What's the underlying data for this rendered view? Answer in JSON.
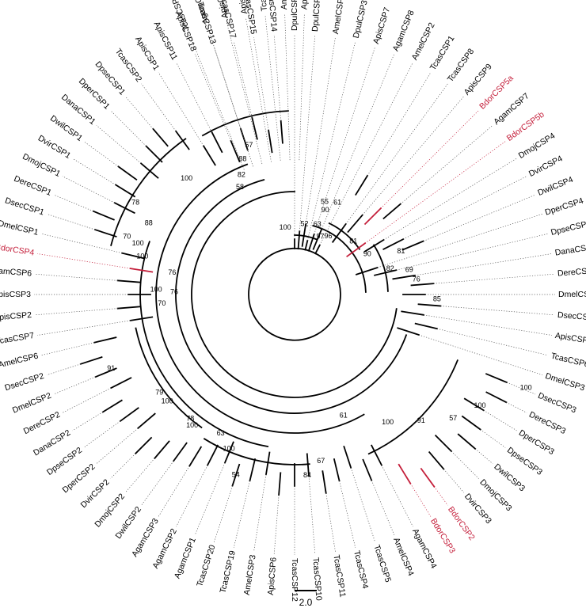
{
  "colors": {
    "branch": "#000000",
    "highlight": "#c41e3a",
    "guide": "#555555"
  },
  "scale_bar": {
    "label": "2.0"
  },
  "leaves": [
    {
      "t": "DpulCSP1",
      "a": 270,
      "h": false
    },
    {
      "t": "DpulCSP2",
      "a": 274.5,
      "h": false
    },
    {
      "t": "AmelCSP5",
      "a": 279,
      "h": false
    },
    {
      "t": "DpulCSP3",
      "a": 283.5,
      "h": false
    },
    {
      "t": "ApisCSP7",
      "a": 288,
      "h": false
    },
    {
      "t": "AgamCSP8",
      "a": 292.5,
      "h": false
    },
    {
      "t": "AmelCSP2",
      "a": 297,
      "h": false
    },
    {
      "t": "TcasCSP1",
      "a": 301.5,
      "h": false
    },
    {
      "t": "TcasCSP8",
      "a": 306,
      "h": false
    },
    {
      "t": "ApisCSP9",
      "a": 310.5,
      "h": false
    },
    {
      "t": "BdorCSP5a",
      "a": 315,
      "h": true
    },
    {
      "t": "AgamCSP7",
      "a": 319.5,
      "h": false
    },
    {
      "t": "BdorCSP5b",
      "a": 324,
      "h": true
    },
    {
      "t": "DmojCSP4",
      "a": 328.5,
      "h": false
    },
    {
      "t": "DvirCSP4",
      "a": 333,
      "h": false
    },
    {
      "t": "DwilCSP4",
      "a": 337.5,
      "h": false
    },
    {
      "t": "DperCSP4",
      "a": 342,
      "h": false
    },
    {
      "t": "DpseCSP4",
      "a": 346.5,
      "h": false
    },
    {
      "t": "DanaCSP4",
      "a": 351,
      "h": false
    },
    {
      "t": "DereCSP4",
      "a": 355.5,
      "h": false
    },
    {
      "t": "DmelCSP4",
      "a": 0,
      "h": false
    },
    {
      "t": "DsecCSP4",
      "a": 4.5,
      "h": false
    },
    {
      "t": "ApisCSP8",
      "a": 9,
      "h": false
    },
    {
      "t": "TcasCSP6",
      "a": 13.5,
      "h": false
    },
    {
      "t": "DmelCSP3",
      "a": 18,
      "h": false
    },
    {
      "t": "DsecCSP3",
      "a": 22.5,
      "h": false
    },
    {
      "t": "DereCSP3",
      "a": 27,
      "h": false
    },
    {
      "t": "DperCSP3",
      "a": 31.5,
      "h": false
    },
    {
      "t": "DpseCSP3",
      "a": 36,
      "h": false
    },
    {
      "t": "DwilCSP3",
      "a": 40.5,
      "h": false
    },
    {
      "t": "DmojCSP3",
      "a": 45,
      "h": false
    },
    {
      "t": "DvirCSP3",
      "a": 49.5,
      "h": false
    },
    {
      "t": "BdorCSP2",
      "a": 54,
      "h": true
    },
    {
      "t": "BdorCSP3",
      "a": 58.5,
      "h": true
    },
    {
      "t": "AgamCSP4",
      "a": 63,
      "h": false
    },
    {
      "t": "AmelCSP4",
      "a": 67.5,
      "h": false
    },
    {
      "t": "TcasCSP5",
      "a": 72,
      "h": false
    },
    {
      "t": "TcasCSP4",
      "a": 76.5,
      "h": false
    },
    {
      "t": "TcasCSP11",
      "a": 81,
      "h": false
    },
    {
      "t": "TcasCSP10",
      "a": 85.5,
      "h": false
    },
    {
      "t": "TcasCSP12",
      "a": 90,
      "h": false
    },
    {
      "t": "ApisCSP6",
      "a": 94.5,
      "h": false
    },
    {
      "t": "AmelCSP3",
      "a": 99,
      "h": false
    },
    {
      "t": "TcasCSP19",
      "a": 103.5,
      "h": false
    },
    {
      "t": "TcasCSP20",
      "a": 108,
      "h": false
    },
    {
      "t": "AgamCSP1",
      "a": 112.5,
      "h": false
    },
    {
      "t": "AgamCSP2",
      "a": 117,
      "h": false
    },
    {
      "t": "AgamCSP3",
      "a": 121.5,
      "h": false
    },
    {
      "t": "DwilCSP2",
      "a": 126,
      "h": false
    },
    {
      "t": "DmojCSP2",
      "a": 130.5,
      "h": false
    },
    {
      "t": "DvirCSP2",
      "a": 135,
      "h": false
    },
    {
      "t": "DperCSP2",
      "a": 139.5,
      "h": false
    },
    {
      "t": "DpseCSP2",
      "a": 144,
      "h": false
    },
    {
      "t": "DanaCSP2",
      "a": 148.5,
      "h": false
    },
    {
      "t": "DereCSP2",
      "a": 153,
      "h": false
    },
    {
      "t": "DmelCSP2",
      "a": 157.5,
      "h": false
    },
    {
      "t": "DsecCSP2",
      "a": 162,
      "h": false
    },
    {
      "t": "AmelCSP6",
      "a": 166.5,
      "h": false
    },
    {
      "t": "TcasCSP7",
      "a": 171,
      "h": false
    },
    {
      "t": "ApisCSP2",
      "a": 175.5,
      "h": false
    },
    {
      "t": "ApisCSP3",
      "a": 180,
      "h": false
    },
    {
      "t": "AgamCSP6",
      "a": 184.5,
      "h": false
    },
    {
      "t": "BdorCSP4",
      "a": 189,
      "h": true
    },
    {
      "t": "DmelCSP1",
      "a": 193.5,
      "h": false
    },
    {
      "t": "DsecCSP1",
      "a": 198,
      "h": false
    },
    {
      "t": "DereCSP1",
      "a": 202.5,
      "h": false
    },
    {
      "t": "DmojCSP1",
      "a": 207,
      "h": false
    },
    {
      "t": "DvirCSP1",
      "a": 211.5,
      "h": false
    },
    {
      "t": "DwilCSP1",
      "a": 216,
      "h": false
    },
    {
      "t": "DanaCSP1",
      "a": 220.5,
      "h": false
    },
    {
      "t": "DperCSP1",
      "a": 225,
      "h": false
    },
    {
      "t": "DpseCSP1",
      "a": 229.5,
      "h": false
    },
    {
      "t": "TcasCSP2",
      "a": 234,
      "h": false
    },
    {
      "t": "ApisCSP1",
      "a": 238.5,
      "h": false
    },
    {
      "t": "ApisCSP11",
      "a": 243,
      "h": false
    },
    {
      "t": "ApisCSP18",
      "a": 247.5,
      "h": false
    },
    {
      "t": "TcasCSP13",
      "a": 252,
      "h": false
    },
    {
      "t": "TcasCSP17",
      "a": 256.5,
      "h": false
    },
    {
      "t": "TcasCSP15",
      "a": 261,
      "h": false
    },
    {
      "t": "TcasCSP14",
      "a": 265.5,
      "h": false
    },
    {
      "t": "TcasCSP9",
      "a": 248,
      "h": false
    },
    {
      "t": "AgamCSP5",
      "a": 252,
      "h": false
    },
    {
      "t": "ApisCSP4",
      "a": 256,
      "h": false
    },
    {
      "t": "ApisCSP10",
      "a": 260,
      "h": false
    },
    {
      "t": "TcasCSP3",
      "a": 264,
      "h": false
    },
    {
      "t": "AmelCSP1",
      "a": 268,
      "h": false
    },
    {
      "t": "ApisCSP5",
      "a": 272,
      "h": false
    }
  ],
  "bootstrap": [
    {
      "v": "57",
      "a": 253,
      "r": 197
    },
    {
      "v": "88",
      "a": 249,
      "r": 183
    },
    {
      "v": "82",
      "a": 246,
      "r": 165
    },
    {
      "v": "58",
      "a": 243,
      "r": 152
    },
    {
      "v": "100",
      "a": 227,
      "r": 200
    },
    {
      "v": "78",
      "a": 210,
      "r": 232
    },
    {
      "v": "88",
      "a": 206,
      "r": 205
    },
    {
      "v": "70",
      "a": 199,
      "r": 224
    },
    {
      "v": "100",
      "a": 198,
      "r": 208
    },
    {
      "v": "100",
      "a": 194,
      "r": 198
    },
    {
      "v": "76",
      "a": 190,
      "r": 157
    },
    {
      "v": "100",
      "a": 182,
      "r": 175
    },
    {
      "v": "76",
      "a": 181,
      "r": 152
    },
    {
      "v": "70",
      "a": 176,
      "r": 168
    },
    {
      "v": "91",
      "a": 158,
      "r": 250
    },
    {
      "v": "79",
      "a": 144,
      "r": 211
    },
    {
      "v": "100",
      "a": 140,
      "r": 210
    },
    {
      "v": "78",
      "a": 130,
      "r": 205
    },
    {
      "v": "100",
      "a": 128,
      "r": 210
    },
    {
      "v": "63",
      "a": 118,
      "r": 199
    },
    {
      "v": "100",
      "a": 113,
      "r": 212
    },
    {
      "v": "54",
      "a": 108,
      "r": 240
    },
    {
      "v": "84",
      "a": 86,
      "r": 229
    },
    {
      "v": "67",
      "a": 81,
      "r": 213
    },
    {
      "v": "61",
      "a": 68,
      "r": 165
    },
    {
      "v": "100",
      "a": 54,
      "r": 200
    },
    {
      "v": "91",
      "a": 45,
      "r": 226
    },
    {
      "v": "57",
      "a": 38,
      "r": 254
    },
    {
      "v": "100",
      "a": 31,
      "r": 273
    },
    {
      "v": "100",
      "a": 22,
      "r": 315
    },
    {
      "v": "85",
      "a": 2,
      "r": 180
    },
    {
      "v": "76",
      "a": 353,
      "r": 155
    },
    {
      "v": "69",
      "a": 348,
      "r": 148
    },
    {
      "v": "82",
      "a": 345,
      "r": 125
    },
    {
      "v": "81",
      "a": 338,
      "r": 145
    },
    {
      "v": "90",
      "a": 331,
      "r": 105
    },
    {
      "v": "81",
      "a": 318,
      "r": 100
    },
    {
      "v": "96",
      "a": 300,
      "r": 85
    },
    {
      "v": "97",
      "a": 294,
      "r": 80
    },
    {
      "v": "63",
      "a": 288,
      "r": 93
    },
    {
      "v": "90",
      "a": 290,
      "r": 113
    },
    {
      "v": "55",
      "a": 288,
      "r": 123
    },
    {
      "v": "61",
      "a": 295,
      "r": 128
    },
    {
      "v": "52",
      "a": 278,
      "r": 90
    },
    {
      "v": "100",
      "a": 262,
      "r": 85
    }
  ]
}
